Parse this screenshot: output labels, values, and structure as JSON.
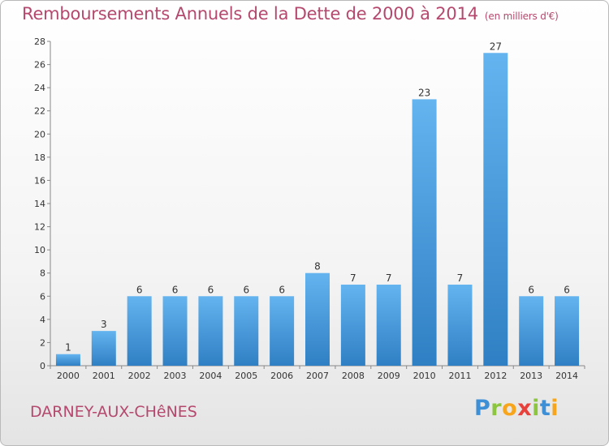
{
  "title": "Remboursements Annuels de la Dette de 2000 à 2014",
  "unit": "(en milliers d'€)",
  "commune": "DARNEY-AUX-CHêNES",
  "logo": {
    "letters": [
      {
        "ch": "P",
        "color": "#3d8fd6"
      },
      {
        "ch": "r",
        "color": "#8cc63f"
      },
      {
        "ch": "o",
        "color": "#f7a51c"
      },
      {
        "ch": "x",
        "color": "#e8403b"
      },
      {
        "ch": "i",
        "color": "#8cc63f"
      },
      {
        "ch": "t",
        "color": "#3d8fd6"
      },
      {
        "ch": "i",
        "color": "#f7a51c"
      }
    ]
  },
  "colors": {
    "bar_light": "#64b4f0",
    "bar_dark": "#2f7fc4",
    "title": "#b5486e"
  },
  "chart_data": {
    "type": "bar",
    "categories": [
      "2000",
      "2001",
      "2002",
      "2003",
      "2004",
      "2005",
      "2006",
      "2007",
      "2008",
      "2009",
      "2010",
      "2011",
      "2012",
      "2013",
      "2014"
    ],
    "values": [
      1,
      3,
      6,
      6,
      6,
      6,
      6,
      8,
      7,
      7,
      23,
      7,
      27,
      6,
      6
    ],
    "ylim": [
      0,
      28
    ],
    "yticks": [
      0,
      2,
      4,
      6,
      8,
      10,
      12,
      14,
      16,
      18,
      20,
      22,
      24,
      26,
      28
    ],
    "grid": false,
    "legend": "none"
  }
}
